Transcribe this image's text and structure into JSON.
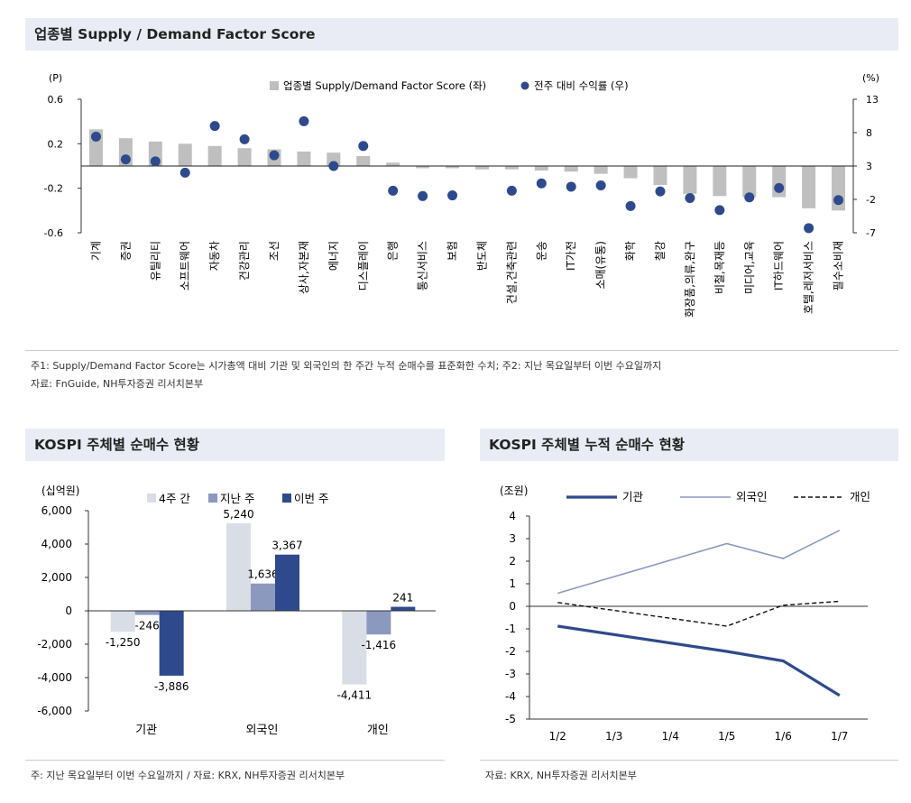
{
  "top": {
    "title": "업종별 Supply / Demand Factor Score",
    "note1": "주1: Supply/Demand Factor Score는 시가총액 대비 기관 및 외국인의 한 주간 누적 순매수를 표준화한 수치; 주2: 지난 목요일부터 이번 수요일까지",
    "note2": "자료: FnGuide, NH투자증권 리서치본부"
  },
  "bl": {
    "title": "KOSPI 주체별 순매수 현황",
    "note": "주: 지난 목요일부터 이번 수요일까지 / 자료: KRX, NH투자증권 리서치본부"
  },
  "br": {
    "title": "KOSPI 주체별 누적 순매수 현황",
    "note": "자료: KRX, NH투자증권 리서치본부"
  },
  "colors": {
    "bar_gray": "#bfbfbf",
    "dot_navy": "#2e4a8c",
    "light": "#d9dde6",
    "mid": "#8b99bf",
    "dark": "#2e4a8c",
    "header_bg": "#e9ecf4"
  },
  "chart_data": [
    {
      "type": "bar",
      "title": "업종별 Supply / Demand Factor Score",
      "y_left_unit": "(P)",
      "y_right_unit": "(%)",
      "ylim_left": [
        -0.6,
        0.6
      ],
      "ylim_right": [
        -7,
        13
      ],
      "yticks_left": [
        "0.6",
        "0.2",
        "-0.2",
        "-0.6"
      ],
      "yticks_right": [
        "13",
        "8",
        "3",
        "-2",
        "-7"
      ],
      "legend_position": "top-center",
      "categories": [
        "기계",
        "증권",
        "유틸리티",
        "소프트웨어",
        "자동차",
        "건강관리",
        "조선",
        "상사,자본재",
        "에너지",
        "디스플레이",
        "은행",
        "통신서비스",
        "보험",
        "반도체",
        "건설,건축관련",
        "운송",
        "IT가전",
        "소매(유통)",
        "화학",
        "철강",
        "화장품,의류,완구",
        "비철,목재등",
        "미디어,교육",
        "IT하드웨어",
        "호텔,레저서비스",
        "필수소비재"
      ],
      "series": [
        {
          "name": "업종별 Supply/Demand Factor Score (좌)",
          "kind": "bar",
          "axis": "left",
          "values": [
            0.33,
            0.25,
            0.22,
            0.2,
            0.18,
            0.16,
            0.15,
            0.13,
            0.12,
            0.09,
            0.03,
            -0.02,
            -0.02,
            -0.03,
            -0.03,
            -0.04,
            -0.05,
            -0.07,
            -0.11,
            -0.17,
            -0.25,
            -0.27,
            -0.28,
            -0.28,
            -0.38,
            -0.4
          ]
        },
        {
          "name": "전주 대비 수익률 (우)",
          "kind": "dot",
          "axis": "right",
          "values": [
            7.4,
            4.0,
            3.7,
            2.0,
            9.0,
            7.0,
            4.6,
            9.7,
            3.0,
            6.0,
            -0.7,
            -1.5,
            -1.4,
            null,
            -0.7,
            0.4,
            -0.1,
            0.1,
            -3.0,
            -0.8,
            -1.8,
            -3.6,
            -1.7,
            -0.3,
            -6.3,
            -2.1
          ]
        }
      ]
    },
    {
      "type": "bar",
      "title": "KOSPI 주체별 순매수 현황",
      "y_unit": "(십억원)",
      "ylim": [
        -6000,
        6000
      ],
      "yticks": [
        "6,000",
        "4,000",
        "2,000",
        "0",
        "-2,000",
        "-4,000",
        "-6,000"
      ],
      "categories": [
        "기관",
        "외국인",
        "개인"
      ],
      "legend_position": "top",
      "series": [
        {
          "name": "4주 간",
          "values": [
            -1250,
            5240,
            -4411
          ],
          "labels": [
            "-1,250",
            "5,240",
            "-4,411"
          ]
        },
        {
          "name": "지난 주",
          "values": [
            -246,
            1636,
            -1416
          ],
          "labels": [
            "-246",
            "1,636",
            "-1,416"
          ]
        },
        {
          "name": "이번 주",
          "values": [
            -3886,
            3367,
            241
          ],
          "labels": [
            "-3,886",
            "3,367",
            "241"
          ]
        }
      ]
    },
    {
      "type": "line",
      "title": "KOSPI 주체별 누적 순매수 현황",
      "y_unit": "(조원)",
      "ylim": [
        -5,
        4
      ],
      "yticks": [
        "4",
        "3",
        "2",
        "1",
        "0",
        "-1",
        "-2",
        "-3",
        "-4",
        "-5"
      ],
      "x": [
        "1/2",
        "1/3",
        "1/4",
        "1/5",
        "1/6",
        "1/7"
      ],
      "legend_position": "top",
      "series": [
        {
          "name": "기관",
          "style": "thick-navy",
          "values": [
            -0.88,
            null,
            null,
            -2.0,
            -2.42,
            -3.95
          ]
        },
        {
          "name": "외국인",
          "style": "thin-slate",
          "values": [
            0.58,
            null,
            null,
            2.78,
            2.12,
            3.37
          ]
        },
        {
          "name": "개인",
          "style": "dashed-black",
          "values": [
            0.17,
            null,
            null,
            -0.88,
            0.05,
            0.22
          ]
        }
      ]
    }
  ]
}
